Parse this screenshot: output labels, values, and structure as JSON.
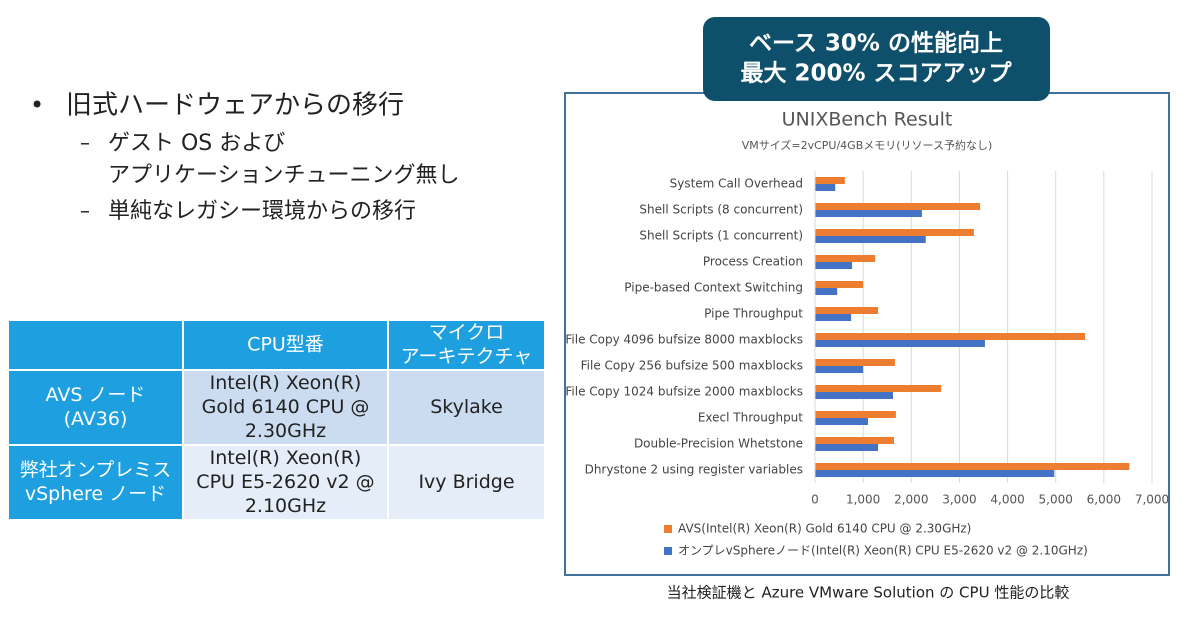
{
  "bullets": [
    {
      "lines": [
        "旧式ハードウェアからの移行"
      ],
      "sub": [
        {
          "lines": [
            "ゲスト OS および",
            "アプリケーションチューニング無し"
          ]
        },
        {
          "lines": [
            "単純なレガシー環境からの移行"
          ]
        }
      ]
    }
  ],
  "table": {
    "header": [
      [
        "CPU型番"
      ],
      [
        "マイクロ",
        "アーキテクチャ"
      ]
    ],
    "rows": [
      [
        [
          "AVS ノード",
          "(AV36)"
        ],
        [
          "Intel(R) Xeon(R)",
          "Gold 6140 CPU @",
          "2.30GHz"
        ],
        [
          "Skylake"
        ]
      ],
      [
        [
          "弊社オンプレミス",
          "vSphere ノード"
        ],
        [
          "Intel(R) Xeon(R)",
          "CPU E5-2620 v2 @",
          "2.10GHz"
        ],
        [
          "Ivy Bridge"
        ]
      ]
    ]
  },
  "callout": [
    "ベース 30% の性能向上",
    "最大 200% スコアアップ"
  ],
  "caption": "当社検証機と Azure VMware Solution の CPU 性能の比較",
  "chart_data": {
    "type": "hbar",
    "title": "UNIXBench Result",
    "subtitle": "VMサイズ=2vCPU/4GBメモリ(リソース予約なし)",
    "categories": [
      "System Call Overhead",
      "Shell Scripts (8 concurrent)",
      "Shell Scripts (1 concurrent)",
      "Process Creation",
      "Pipe-based Context Switching",
      "Pipe Throughput",
      "File Copy 4096 bufsize 8000 maxblocks",
      "File Copy 256 bufsize 500 maxblocks",
      "File Copy 1024 bufsize 2000 maxblocks",
      "Execl Throughput",
      "Double-Precision Whetstone",
      "Dhrystone 2 using register variables"
    ],
    "series": [
      {
        "name": "AVS(Intel(R) Xeon(R) Gold 6140 CPU @ 2.30GHz)",
        "color": "#ed7d31",
        "values": [
          620,
          3430,
          3300,
          1250,
          1000,
          1310,
          5610,
          1660,
          2620,
          1680,
          1640,
          6530
        ]
      },
      {
        "name": "オンプレvSphereノード(Intel(R) Xeon(R) CPU E5-2620 v2 @ 2.10GHz)",
        "color": "#4472c4",
        "values": [
          420,
          2220,
          2300,
          770,
          460,
          750,
          3530,
          1000,
          1620,
          1100,
          1310,
          4970
        ]
      }
    ],
    "xlim": [
      0,
      7000
    ],
    "xticks": [
      0,
      {
        "value": 1000,
        "label": "1,000"
      },
      {
        "value": 2000,
        "label": "2,000"
      },
      {
        "value": 3000,
        "label": "3,000"
      },
      {
        "value": 4000,
        "label": "4,000"
      },
      {
        "value": 5000,
        "label": "5,000"
      },
      {
        "value": 6000,
        "label": "6,000"
      },
      {
        "value": 7000,
        "label": "7,000"
      }
    ],
    "grid": true,
    "legend": "bottom"
  }
}
